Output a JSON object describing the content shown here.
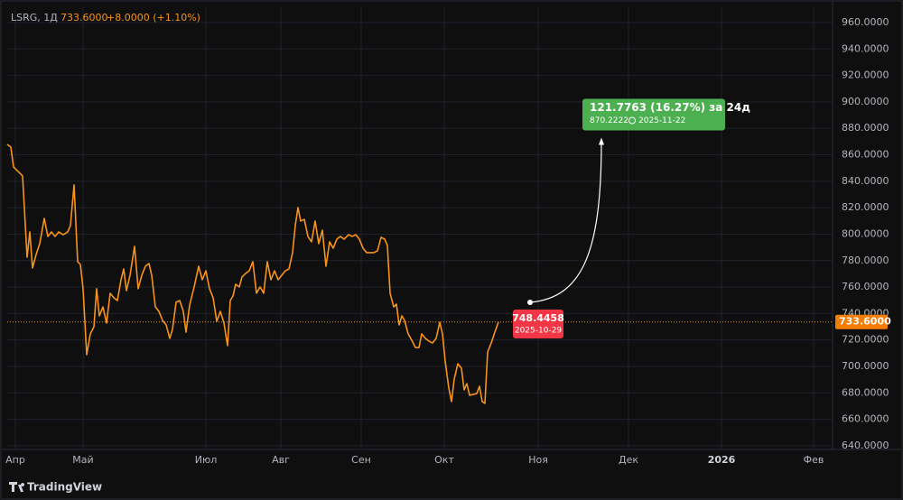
{
  "chart_data": {
    "type": "line",
    "title": "LSRG, 1Д",
    "last_price": {
      "value": 733.6,
      "label": "733.6000"
    },
    "change": "+8.0000 (+1.10%)",
    "color": "#f7931a",
    "grid": true,
    "xlim": [
      0,
      228.5
    ],
    "xticks": [
      {
        "value": 2.25,
        "label": "Апр"
      },
      {
        "value": 21,
        "label": "Май"
      },
      {
        "value": 55,
        "label": "Июл"
      },
      {
        "value": 75.75,
        "label": "Авг"
      },
      {
        "value": 98,
        "label": "Сен"
      },
      {
        "value": 121,
        "label": "Окт"
      },
      {
        "value": 147,
        "label": "Ноя"
      },
      {
        "value": 172,
        "label": "Дек"
      },
      {
        "value": 197.75,
        "label": "2026"
      },
      {
        "value": 223.25,
        "label": "Фев"
      }
    ],
    "ylim": [
      637.2,
      971.6
    ],
    "yticks": [
      {
        "value": 640,
        "label": "640.0000"
      },
      {
        "value": 660,
        "label": "660.0000"
      },
      {
        "value": 680,
        "label": "680.0000"
      },
      {
        "value": 700,
        "label": "700.0000"
      },
      {
        "value": 720,
        "label": "720.0000"
      },
      {
        "value": 740,
        "label": "740.0000"
      },
      {
        "value": 760,
        "label": "760.0000"
      },
      {
        "value": 780,
        "label": "780.0000"
      },
      {
        "value": 800,
        "label": "800.0000"
      },
      {
        "value": 820,
        "label": "820.0000"
      },
      {
        "value": 840,
        "label": "840.0000"
      },
      {
        "value": 860,
        "label": "860.0000"
      },
      {
        "value": 880,
        "label": "880.0000"
      },
      {
        "value": 900,
        "label": "900.0000"
      },
      {
        "value": 920,
        "label": "920.0000"
      },
      {
        "value": 940,
        "label": "940.0000"
      },
      {
        "value": 960,
        "label": "960.0000"
      }
    ],
    "x": [
      0,
      1,
      1.75,
      3,
      4.25,
      5.5,
      6.25,
      7,
      8,
      9,
      10.25,
      11.25,
      12.25,
      13.25,
      14.25,
      15.5,
      16.75,
      17.5,
      18.5,
      19.5,
      20.25,
      21,
      22,
      23,
      24,
      24.75,
      25.5,
      26.5,
      27.5,
      28.5,
      29.5,
      30.5,
      31.5,
      32.25,
      33,
      34,
      35.25,
      36.25,
      37.25,
      38.25,
      39.25,
      40,
      41,
      42,
      43,
      44,
      45,
      45.75,
      46.75,
      47.75,
      48.75,
      49.5,
      50.5,
      51.75,
      53,
      54,
      55,
      56,
      57,
      58,
      59,
      60,
      61,
      61.75,
      62.5,
      63.25,
      64.25,
      65,
      66,
      67,
      68,
      69,
      70,
      71,
      72,
      73,
      74,
      75,
      76,
      77,
      78,
      79,
      79.75,
      80.5,
      81.25,
      82.25,
      83.25,
      84.25,
      85.25,
      86.25,
      87.25,
      88.25,
      89.25,
      90.25,
      91.25,
      92.25,
      93.25,
      94.5,
      95.5,
      96.5,
      97.5,
      98.5,
      99.5,
      100.5,
      101.5,
      102.5,
      103.5,
      104.5,
      105.25,
      106,
      107,
      107.75,
      108.5,
      109.25,
      110,
      111,
      112,
      113,
      114,
      114.75,
      115.75,
      116.75,
      117.75,
      118.75,
      119.75,
      120.5,
      121.25,
      122.25,
      123,
      123.75,
      124.75,
      125.75,
      126.5,
      127.25,
      128,
      129,
      130,
      130.75,
      131.5,
      132.25,
      133,
      134,
      135,
      136
    ],
    "values": [
      867.9,
      865.8,
      850.8,
      847.4,
      844.0,
      782.6,
      801.7,
      774.4,
      784.6,
      792.8,
      811.9,
      798.3,
      801.7,
      798.3,
      801.7,
      799.6,
      801.7,
      806.5,
      837.2,
      779.2,
      777.1,
      758.7,
      708.9,
      724.6,
      730.0,
      758.7,
      738.2,
      745.0,
      732.8,
      755.3,
      751.9,
      749.8,
      765.5,
      773.7,
      757.3,
      768.9,
      790.8,
      758.7,
      768.9,
      775.7,
      777.8,
      768.9,
      745.0,
      741.6,
      734.8,
      731.4,
      721.2,
      728.0,
      748.5,
      749.8,
      741.6,
      725.9,
      746.4,
      760.1,
      775.7,
      765.5,
      772.3,
      758.7,
      751.9,
      734.1,
      741.6,
      732.8,
      715.7,
      749.8,
      753.2,
      762.1,
      760.1,
      767.6,
      770.3,
      772.3,
      779.2,
      755.3,
      760.1,
      755.3,
      779.2,
      765.5,
      772.3,
      765.5,
      768.9,
      772.3,
      773.7,
      786.0,
      806.5,
      820.1,
      809.9,
      811.2,
      798.3,
      794.2,
      809.9,
      792.8,
      803.0,
      775.7,
      794.2,
      789.4,
      796.2,
      798.3,
      796.2,
      799.6,
      798.3,
      799.6,
      796.2,
      789.4,
      786.0,
      786.0,
      786.0,
      787.4,
      797.6,
      796.2,
      791.4,
      755.3,
      745.0,
      747.1,
      731.4,
      738.2,
      734.8,
      724.6,
      719.8,
      714.3,
      714.3,
      724.6,
      721.2,
      719.1,
      717.7,
      721.2,
      733.4,
      724.6,
      704.1,
      683.6,
      673.4,
      690.4,
      702.0,
      698.6,
      682.3,
      687.0,
      678.2,
      678.8,
      679.5,
      685.0,
      673.4,
      672.0,
      710.9,
      717.7,
      725.9,
      733.6
    ],
    "projection": {
      "change_label": "121.7763 (16.27%) за 24д",
      "from": {
        "x": 144.75,
        "value": 748.4458,
        "date": "2025-10-29"
      },
      "to": {
        "x": 164.5,
        "value": 870.2222,
        "date": "2025-11-22"
      }
    },
    "brand": "TradingView"
  }
}
